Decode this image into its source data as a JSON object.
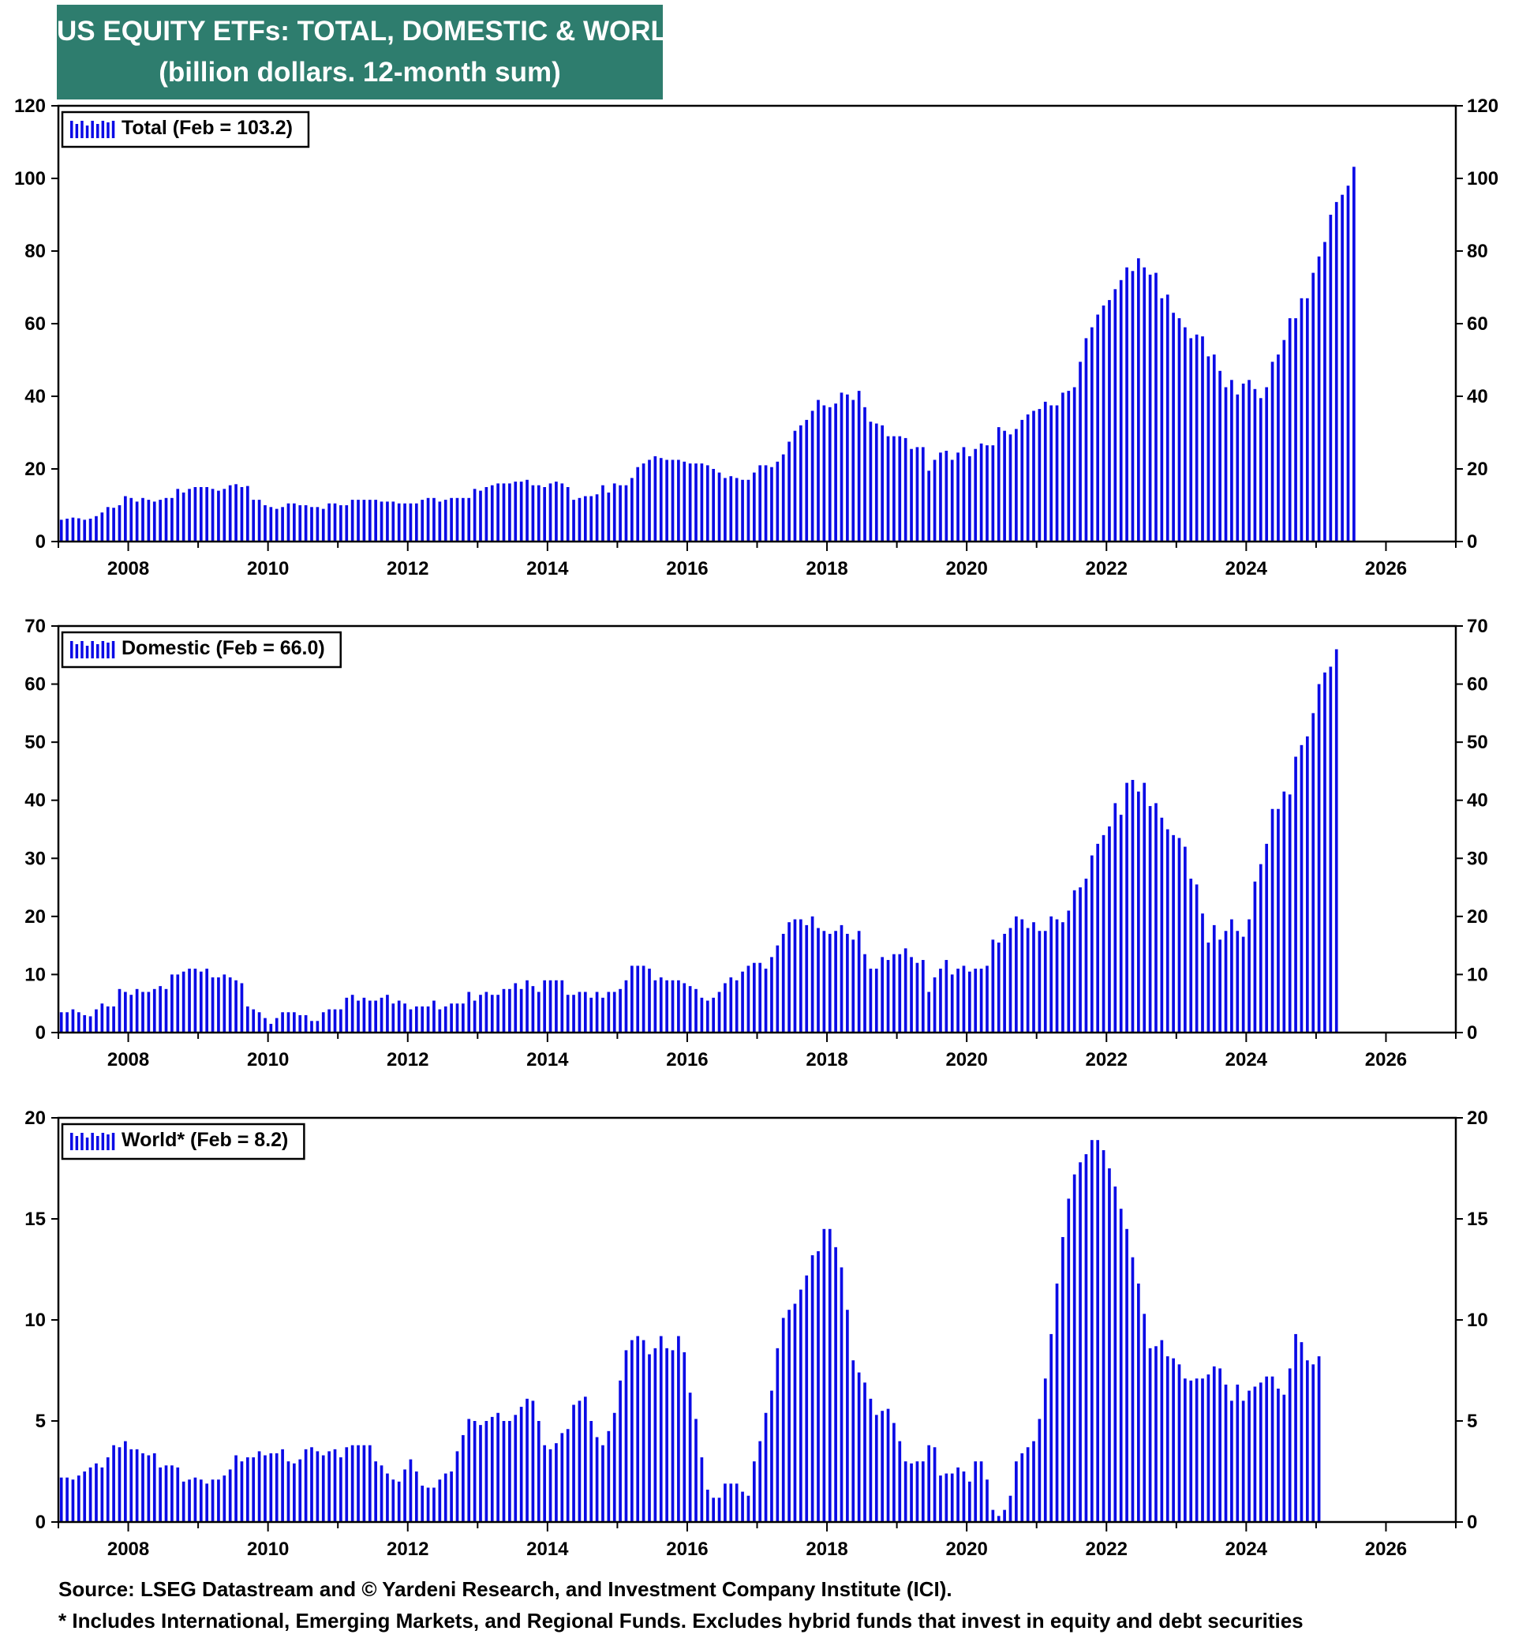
{
  "header": {
    "title_line1": "US EQUITY ETFs: TOTAL, DOMESTIC & WORLD",
    "title_line2": "(billion dollars. 12-month sum)"
  },
  "colors": {
    "bar": "#0a0ae6",
    "header_bg": "#2e7d6e"
  },
  "footer": {
    "source": "Source: LSEG Datastream and © Yardeni Research, and Investment Company Institute (ICI).",
    "note": "* Includes International, Emerging Markets, and Regional Funds. Excludes hybrid funds that invest in equity and debt securities"
  },
  "chart_data": [
    {
      "type": "bar",
      "name": "total",
      "legend": "Total (Feb = 103.2)",
      "xlim": [
        2007.0,
        2027.0
      ],
      "ylim": [
        0,
        120
      ],
      "yticks": [
        0,
        20,
        40,
        60,
        80,
        100,
        120
      ],
      "xticks": [
        2008,
        2010,
        2012,
        2014,
        2016,
        2018,
        2020,
        2022,
        2024,
        2026
      ],
      "start": "2007-01",
      "values": [
        6.0,
        6.3,
        6.6,
        6.4,
        6.0,
        6.3,
        7.0,
        8.0,
        9.5,
        9.3,
        10.0,
        12.5,
        12.0,
        11.0,
        12.0,
        11.5,
        11.0,
        11.5,
        12.0,
        12.0,
        14.5,
        13.5,
        14.5,
        15.0,
        15.0,
        15.0,
        14.5,
        14.0,
        14.5,
        15.5,
        15.8,
        15.0,
        15.3,
        11.5,
        11.5,
        10.0,
        9.5,
        9.0,
        9.5,
        10.5,
        10.5,
        10.0,
        10.0,
        9.5,
        9.5,
        9.0,
        10.5,
        10.5,
        10.0,
        10.0,
        11.5,
        11.5,
        11.5,
        11.5,
        11.5,
        11.0,
        11.0,
        11.0,
        10.5,
        10.5,
        10.5,
        10.5,
        11.5,
        12.0,
        12.0,
        11.0,
        11.5,
        12.0,
        12.0,
        12.0,
        12.0,
        14.5,
        14.0,
        15.0,
        15.5,
        16.0,
        16.0,
        16.0,
        16.5,
        16.5,
        17.0,
        15.5,
        15.5,
        15.0,
        16.0,
        16.5,
        16.0,
        15.0,
        11.5,
        12.0,
        12.5,
        12.5,
        13.0,
        15.5,
        13.5,
        16.0,
        15.5,
        15.5,
        17.5,
        20.5,
        21.5,
        22.5,
        23.5,
        23.0,
        22.5,
        22.5,
        22.5,
        22.0,
        21.5,
        21.5,
        21.5,
        21.0,
        20.0,
        19.0,
        17.5,
        18.0,
        17.5,
        17.0,
        17.0,
        19.0,
        21.0,
        21.0,
        20.5,
        22.0,
        24.0,
        27.5,
        30.5,
        32.0,
        33.5,
        36.0,
        39.0,
        37.5,
        37.0,
        38.0,
        41.0,
        40.5,
        39.0,
        41.5,
        37.0,
        33.0,
        32.5,
        32.0,
        29.0,
        29.0,
        29.0,
        28.5,
        25.5,
        26.0,
        26.0,
        19.5,
        22.5,
        24.5,
        25.0,
        22.5,
        24.5,
        26.0,
        23.5,
        25.5,
        27.0,
        26.5,
        26.5,
        31.5,
        30.5,
        29.5,
        31.0,
        33.5,
        35.0,
        36.0,
        36.5,
        38.5,
        37.5,
        37.5,
        41.0,
        41.5,
        42.5,
        49.5,
        56.0,
        59.0,
        62.5,
        65.0,
        66.5,
        69.5,
        72.0,
        75.5,
        74.5,
        78.0,
        75.5,
        73.5,
        74.0,
        67.0,
        68.0,
        63.0,
        61.5,
        59.0,
        56.0,
        57.0,
        56.5,
        51.0,
        51.5,
        47.0,
        42.5,
        44.5,
        40.5,
        43.5,
        44.5,
        42.0,
        39.5,
        42.5,
        49.5,
        51.5,
        55.5,
        61.5,
        61.5,
        67.0,
        67.0,
        74.0,
        78.5,
        82.5,
        90.0,
        93.5,
        95.5,
        98.0,
        103.2
      ]
    },
    {
      "type": "bar",
      "name": "domestic",
      "legend": "Domestic (Feb = 66.0)",
      "xlim": [
        2007.0,
        2027.0
      ],
      "ylim": [
        0,
        70
      ],
      "yticks": [
        0,
        10,
        20,
        30,
        40,
        50,
        60,
        70
      ],
      "xticks": [
        2008,
        2010,
        2012,
        2014,
        2016,
        2018,
        2020,
        2022,
        2024,
        2026
      ],
      "start": "2007-01",
      "values": [
        3.5,
        3.5,
        4.0,
        3.5,
        3.0,
        2.8,
        4.0,
        5.0,
        4.5,
        4.5,
        7.5,
        7.0,
        6.5,
        7.5,
        7.0,
        7.0,
        7.5,
        8.0,
        7.5,
        10.0,
        10.0,
        10.5,
        11.0,
        11.0,
        10.5,
        11.0,
        9.5,
        9.5,
        10.0,
        9.5,
        9.0,
        8.5,
        4.5,
        4.0,
        3.5,
        2.5,
        1.5,
        2.5,
        3.5,
        3.5,
        3.5,
        3.0,
        3.0,
        2.0,
        2.0,
        3.5,
        4.0,
        4.0,
        4.0,
        6.0,
        6.5,
        5.5,
        6.0,
        5.5,
        5.5,
        6.0,
        6.5,
        5.0,
        5.5,
        5.0,
        4.0,
        4.5,
        4.5,
        4.5,
        5.5,
        4.0,
        4.5,
        5.0,
        5.0,
        5.0,
        7.0,
        5.5,
        6.5,
        7.0,
        6.5,
        6.5,
        7.5,
        7.5,
        8.5,
        7.5,
        9.0,
        8.0,
        7.0,
        9.0,
        9.0,
        9.0,
        9.0,
        6.5,
        6.5,
        7.0,
        7.0,
        6.0,
        7.0,
        6.0,
        7.0,
        7.0,
        7.5,
        9.0,
        11.5,
        11.5,
        11.5,
        11.0,
        9.0,
        9.5,
        9.0,
        9.0,
        9.0,
        8.5,
        8.0,
        7.5,
        6.0,
        5.5,
        6.0,
        7.0,
        8.5,
        9.5,
        9.0,
        10.5,
        11.5,
        12.0,
        12.0,
        11.0,
        13.0,
        15.0,
        17.0,
        19.0,
        19.5,
        19.5,
        18.5,
        20.0,
        18.0,
        17.5,
        17.0,
        17.5,
        18.5,
        17.0,
        16.0,
        17.5,
        13.5,
        11.0,
        11.0,
        13.0,
        12.5,
        13.5,
        13.5,
        14.5,
        13.0,
        12.0,
        12.5,
        7.0,
        9.5,
        11.0,
        12.5,
        10.0,
        11.0,
        11.5,
        10.5,
        11.0,
        11.0,
        11.5,
        16.0,
        15.5,
        17.0,
        18.0,
        20.0,
        19.5,
        18.0,
        19.0,
        17.5,
        17.5,
        20.0,
        19.5,
        19.0,
        21.0,
        24.5,
        25.0,
        26.5,
        30.5,
        32.5,
        34.0,
        35.5,
        39.5,
        37.5,
        43.0,
        43.5,
        41.5,
        43.0,
        39.0,
        39.5,
        37.0,
        35.0,
        34.0,
        33.5,
        32.0,
        26.5,
        25.5,
        20.5,
        15.5,
        18.5,
        16.0,
        17.5,
        19.5,
        17.5,
        16.5,
        19.5,
        26.0,
        29.0,
        32.5,
        38.5,
        38.5,
        41.5,
        41.0,
        47.5,
        49.5,
        51.0,
        55.0,
        60.0,
        62.0,
        63.0,
        66.0
      ]
    },
    {
      "type": "bar",
      "name": "world",
      "legend": "World* (Feb = 8.2)",
      "xlim": [
        2007.0,
        2027.0
      ],
      "ylim": [
        0,
        20
      ],
      "yticks": [
        0,
        5,
        10,
        15,
        20
      ],
      "xticks": [
        2008,
        2010,
        2012,
        2014,
        2016,
        2018,
        2020,
        2022,
        2024,
        2026
      ],
      "start": "2007-01",
      "values": [
        2.2,
        2.2,
        2.1,
        2.3,
        2.5,
        2.7,
        2.9,
        2.7,
        3.2,
        3.8,
        3.7,
        4.0,
        3.6,
        3.6,
        3.4,
        3.3,
        3.4,
        2.7,
        2.8,
        2.8,
        2.7,
        2.0,
        2.1,
        2.2,
        2.1,
        1.9,
        2.1,
        2.1,
        2.3,
        2.6,
        3.3,
        3.0,
        3.2,
        3.2,
        3.5,
        3.3,
        3.4,
        3.4,
        3.6,
        3.0,
        2.9,
        3.1,
        3.6,
        3.7,
        3.5,
        3.3,
        3.5,
        3.6,
        3.2,
        3.7,
        3.8,
        3.8,
        3.8,
        3.8,
        3.0,
        2.8,
        2.4,
        2.1,
        2.0,
        2.6,
        3.1,
        2.5,
        1.8,
        1.7,
        1.7,
        2.1,
        2.4,
        2.5,
        3.5,
        4.3,
        5.1,
        5.0,
        4.8,
        5.0,
        5.2,
        5.4,
        5.0,
        5.0,
        5.3,
        5.7,
        6.1,
        6.0,
        5.0,
        3.8,
        3.6,
        3.9,
        4.4,
        4.6,
        5.8,
        6.0,
        6.2,
        5.0,
        4.2,
        3.8,
        4.5,
        5.4,
        7.0,
        8.5,
        9.0,
        9.2,
        9.0,
        8.3,
        8.6,
        9.2,
        8.6,
        8.5,
        9.2,
        8.4,
        6.4,
        5.1,
        3.2,
        1.6,
        1.2,
        1.2,
        1.9,
        1.9,
        1.9,
        1.5,
        1.3,
        3.0,
        4.0,
        5.4,
        6.5,
        8.6,
        10.1,
        10.5,
        10.8,
        11.5,
        12.2,
        13.2,
        13.4,
        14.5,
        14.5,
        13.6,
        12.6,
        10.5,
        8.0,
        7.4,
        6.9,
        6.1,
        5.3,
        5.5,
        5.6,
        4.9,
        4.0,
        3.0,
        2.9,
        3.0,
        3.0,
        3.8,
        3.7,
        2.3,
        2.4,
        2.4,
        2.7,
        2.5,
        2.0,
        3.0,
        3.0,
        2.1,
        0.6,
        0.3,
        0.6,
        1.3,
        3.0,
        3.4,
        3.7,
        4.0,
        5.1,
        7.1,
        9.3,
        11.8,
        14.1,
        16.0,
        17.2,
        17.8,
        18.2,
        18.9,
        18.9,
        18.4,
        17.5,
        16.6,
        15.5,
        14.5,
        13.1,
        11.8,
        10.3,
        8.6,
        8.7,
        9.0,
        8.2,
        8.1,
        7.8,
        7.1,
        7.0,
        7.1,
        7.1,
        7.3,
        7.7,
        7.6,
        6.8,
        6.0,
        6.8,
        6.0,
        6.5,
        6.7,
        6.9,
        7.2,
        7.2,
        6.6,
        6.3,
        7.6,
        9.3,
        8.9,
        8.0,
        7.8,
        8.2
      ]
    }
  ]
}
